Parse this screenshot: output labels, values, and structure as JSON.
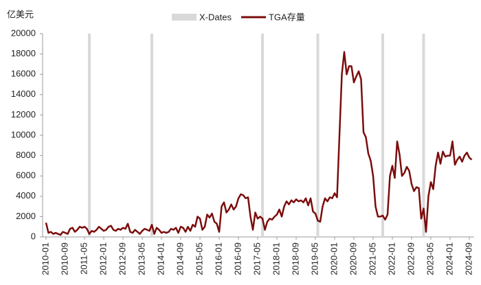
{
  "chart_data": {
    "type": "line",
    "y_axis_label": "亿美元",
    "categories": [
      "2010-01",
      null,
      null,
      null,
      null,
      null,
      null,
      null,
      "2010-09",
      null,
      null,
      null,
      null,
      null,
      null,
      null,
      "2011-05",
      null,
      null,
      null,
      null,
      null,
      null,
      null,
      "2012-01",
      null,
      null,
      null,
      null,
      null,
      null,
      null,
      "2012-09",
      null,
      null,
      null,
      null,
      null,
      null,
      null,
      "2013-05",
      null,
      null,
      null,
      null,
      null,
      null,
      null,
      "2014-01",
      null,
      null,
      null,
      null,
      null,
      null,
      null,
      "2014-09",
      null,
      null,
      null,
      null,
      null,
      null,
      null,
      "2015-05",
      null,
      null,
      null,
      null,
      null,
      null,
      null,
      "2016-01",
      null,
      null,
      null,
      null,
      null,
      null,
      null,
      "2016-09",
      null,
      null,
      null,
      null,
      null,
      null,
      null,
      "2017-05",
      null,
      null,
      null,
      null,
      null,
      null,
      null,
      "2018-01",
      null,
      null,
      null,
      null,
      null,
      null,
      null,
      "2018-09",
      null,
      null,
      null,
      null,
      null,
      null,
      null,
      "2019-05",
      null,
      null,
      null,
      null,
      null,
      null,
      null,
      "2020-01",
      null,
      null,
      null,
      null,
      null,
      null,
      null,
      "2020-09",
      null,
      null,
      null,
      null,
      null,
      null,
      null,
      "2021-05",
      null,
      null,
      null,
      null,
      null,
      null,
      null,
      "2022-01",
      null,
      null,
      null,
      null,
      null,
      null,
      null,
      "2022-09",
      null,
      null,
      null,
      null,
      null,
      null,
      null,
      "2023-05",
      null,
      null,
      null,
      null,
      null,
      null,
      null,
      "2024-01",
      null,
      null,
      null,
      null,
      null,
      null,
      null,
      "2024-09",
      null
    ],
    "series": [
      {
        "name": "X-Dates",
        "type": "bar",
        "color": "#d9d9d9",
        "values": [
          null,
          null,
          null,
          null,
          null,
          null,
          null,
          null,
          null,
          null,
          null,
          null,
          null,
          null,
          null,
          null,
          null,
          null,
          20000,
          null,
          null,
          null,
          null,
          null,
          null,
          null,
          null,
          null,
          null,
          null,
          null,
          null,
          null,
          null,
          null,
          null,
          null,
          null,
          null,
          null,
          null,
          null,
          null,
          null,
          20000,
          null,
          null,
          null,
          null,
          null,
          null,
          null,
          null,
          null,
          null,
          null,
          null,
          null,
          null,
          null,
          null,
          null,
          null,
          null,
          null,
          null,
          null,
          null,
          null,
          null,
          null,
          null,
          null,
          null,
          null,
          null,
          null,
          null,
          null,
          null,
          null,
          null,
          null,
          null,
          null,
          null,
          null,
          null,
          null,
          null,
          20000,
          null,
          null,
          null,
          null,
          null,
          null,
          null,
          null,
          null,
          null,
          null,
          null,
          null,
          null,
          null,
          null,
          null,
          null,
          null,
          null,
          null,
          null,
          20000,
          null,
          null,
          null,
          null,
          null,
          null,
          null,
          null,
          null,
          null,
          null,
          null,
          null,
          null,
          null,
          null,
          null,
          null,
          null,
          null,
          null,
          null,
          null,
          null,
          null,
          null,
          20000,
          null,
          null,
          null,
          null,
          null,
          null,
          null,
          null,
          null,
          null,
          null,
          null,
          null,
          null,
          null,
          null,
          20000,
          null,
          null,
          null,
          null,
          null,
          null,
          null,
          null,
          null,
          null,
          null,
          null,
          null,
          null,
          null,
          null,
          null,
          null,
          null,
          null
        ]
      },
      {
        "name": "TGA存量",
        "type": "line",
        "color": "#7b0c0c",
        "values": [
          1400,
          400,
          500,
          300,
          400,
          300,
          200,
          500,
          400,
          300,
          800,
          900,
          500,
          700,
          1000,
          900,
          1000,
          800,
          300,
          600,
          500,
          700,
          1000,
          800,
          600,
          700,
          1000,
          1100,
          700,
          600,
          800,
          700,
          900,
          800,
          1300,
          500,
          400,
          700,
          500,
          300,
          600,
          800,
          700,
          600,
          1200,
          300,
          900,
          700,
          400,
          500,
          400,
          500,
          800,
          700,
          900,
          400,
          1000,
          900,
          500,
          1000,
          600,
          1200,
          1000,
          2000,
          1800,
          700,
          1000,
          2200,
          1900,
          2300,
          1500,
          1300,
          500,
          3000,
          3400,
          2400,
          2700,
          3200,
          2700,
          3000,
          3800,
          4200,
          4100,
          3800,
          3900,
          2000,
          700,
          2400,
          1800,
          2000,
          1800,
          700,
          1500,
          1800,
          1700,
          2000,
          2200,
          2700,
          2000,
          3000,
          3500,
          3200,
          3600,
          3400,
          3700,
          3500,
          3600,
          3400,
          3800,
          3100,
          3800,
          2500,
          2300,
          1600,
          1500,
          3000,
          3800,
          3500,
          3900,
          3800,
          4300,
          3900,
          10000,
          16000,
          18200,
          16000,
          16800,
          16800,
          15200,
          15800,
          16300,
          15500,
          10300,
          9800,
          8200,
          7500,
          6000,
          3000,
          2000,
          2000,
          2100,
          1700,
          2200,
          6000,
          7000,
          5800,
          9400,
          8100,
          6000,
          6300,
          6900,
          6500,
          5200,
          4500,
          4900,
          4800,
          1800,
          2800,
          500,
          4000,
          5400,
          4700,
          7000,
          8300,
          7200,
          8400,
          7900,
          8000,
          8000,
          9400,
          7100,
          7600,
          7900,
          7400,
          8000,
          8300,
          7800,
          7600
        ]
      }
    ],
    "ylim": [
      0,
      20000
    ],
    "yticks": [
      0,
      2000,
      4000,
      6000,
      8000,
      10000,
      12000,
      14000,
      16000,
      18000,
      20000
    ],
    "legend": "top"
  }
}
